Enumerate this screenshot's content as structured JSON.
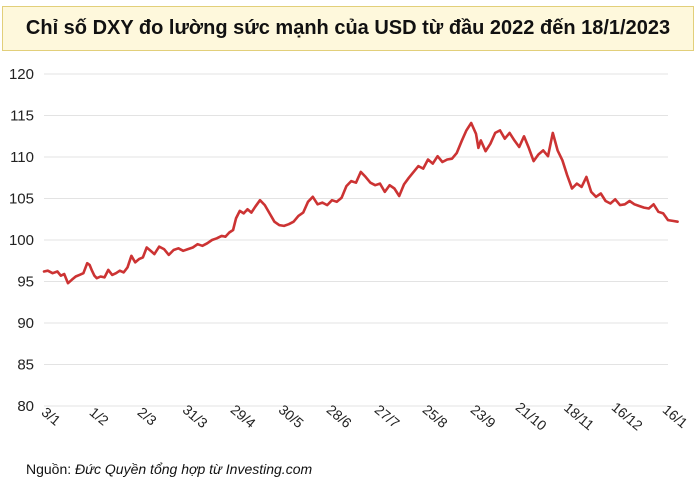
{
  "title": "Chỉ số DXY đo lường sức mạnh của USD từ đầu 2022 đến 18/1/2023",
  "source_label": "Nguồn:",
  "source_text": "Đức Quyền tổng hợp từ Investing.com",
  "colors": {
    "line": "#cc3333",
    "grid": "#e3e3e3",
    "title_bg": "#fef8dc",
    "title_border": "#e2cf7a"
  },
  "chart_data": {
    "type": "line",
    "title": "Chỉ số DXY đo lường sức mạnh của USD từ đầu 2022 đến 18/1/2023",
    "xlabel": "",
    "ylabel": "",
    "ylim": [
      80,
      120
    ],
    "yticks": [
      80,
      85,
      90,
      95,
      100,
      105,
      110,
      115,
      120
    ],
    "grid": true,
    "categories": [
      "3/1",
      "1/2",
      "2/3",
      "31/3",
      "29/4",
      "30/5",
      "28/6",
      "27/7",
      "25/8",
      "23/9",
      "21/10",
      "18/11",
      "16/12",
      "16/1"
    ],
    "series": [
      {
        "name": "DXY",
        "x": [
          0,
          0.08,
          0.18,
          0.28,
          0.35,
          0.42,
          0.5,
          0.58,
          0.66,
          0.74,
          0.82,
          0.9,
          0.95,
          1.0,
          1.05,
          1.1,
          1.18,
          1.26,
          1.34,
          1.42,
          1.5,
          1.58,
          1.66,
          1.74,
          1.82,
          1.9,
          1.98,
          2.06,
          2.14,
          2.22,
          2.3,
          2.4,
          2.5,
          2.6,
          2.7,
          2.8,
          2.9,
          3.0,
          3.1,
          3.2,
          3.3,
          3.4,
          3.5,
          3.6,
          3.7,
          3.78,
          3.86,
          3.94,
          4.0,
          4.08,
          4.16,
          4.24,
          4.32,
          4.4,
          4.5,
          4.6,
          4.7,
          4.8,
          4.9,
          5.0,
          5.1,
          5.2,
          5.3,
          5.4,
          5.5,
          5.6,
          5.7,
          5.8,
          5.9,
          6.0,
          6.1,
          6.2,
          6.3,
          6.4,
          6.5,
          6.6,
          6.7,
          6.8,
          6.9,
          7.0,
          7.1,
          7.2,
          7.3,
          7.4,
          7.5,
          7.6,
          7.7,
          7.8,
          7.9,
          8.0,
          8.1,
          8.2,
          8.3,
          8.4,
          8.5,
          8.6,
          8.7,
          8.8,
          8.9,
          9.0,
          9.05,
          9.1,
          9.2,
          9.3,
          9.4,
          9.5,
          9.6,
          9.7,
          9.8,
          9.9,
          10.0,
          10.1,
          10.2,
          10.3,
          10.4,
          10.5,
          10.6,
          10.7,
          10.8,
          10.9,
          11.0,
          11.1,
          11.2,
          11.3,
          11.4,
          11.5,
          11.6,
          11.7,
          11.8,
          11.9,
          12.0,
          12.1,
          12.2,
          12.3,
          12.4,
          12.5,
          12.6,
          12.7,
          12.8,
          12.9,
          13.0,
          13.1,
          13.2
        ],
        "values": [
          96.2,
          96.3,
          96.0,
          96.2,
          95.7,
          95.9,
          94.8,
          95.2,
          95.6,
          95.8,
          96.0,
          97.2,
          97.0,
          96.3,
          95.7,
          95.4,
          95.6,
          95.5,
          96.4,
          95.8,
          96.0,
          96.3,
          96.1,
          96.7,
          98.1,
          97.3,
          97.7,
          97.9,
          99.1,
          98.7,
          98.3,
          99.2,
          98.9,
          98.2,
          98.8,
          99.0,
          98.7,
          98.9,
          99.1,
          99.5,
          99.3,
          99.6,
          100.0,
          100.2,
          100.5,
          100.4,
          100.9,
          101.2,
          102.6,
          103.5,
          103.2,
          103.7,
          103.3,
          104.0,
          104.8,
          104.2,
          103.2,
          102.2,
          101.8,
          101.7,
          101.9,
          102.2,
          102.9,
          103.3,
          104.6,
          105.2,
          104.3,
          104.5,
          104.2,
          104.8,
          104.6,
          105.1,
          106.5,
          107.1,
          106.9,
          108.2,
          107.6,
          106.9,
          106.6,
          106.8,
          105.8,
          106.6,
          106.2,
          105.3,
          106.7,
          107.5,
          108.2,
          108.9,
          108.6,
          109.7,
          109.2,
          110.1,
          109.4,
          109.7,
          109.8,
          110.5,
          111.9,
          113.2,
          114.1,
          112.8,
          111.1,
          112.0,
          110.7,
          111.6,
          112.9,
          113.2,
          112.2,
          112.9,
          112.0,
          111.2,
          112.5,
          111.1,
          109.5,
          110.3,
          110.8,
          110.1,
          112.9,
          110.8,
          109.6,
          107.8,
          106.2,
          106.8,
          106.4,
          107.6,
          105.8,
          105.2,
          105.6,
          104.7,
          104.4,
          104.9,
          104.2,
          104.3,
          104.7,
          104.3,
          104.1,
          103.9,
          103.8,
          104.3,
          103.4,
          103.2,
          102.4,
          102.3,
          102.2
        ]
      }
    ]
  }
}
